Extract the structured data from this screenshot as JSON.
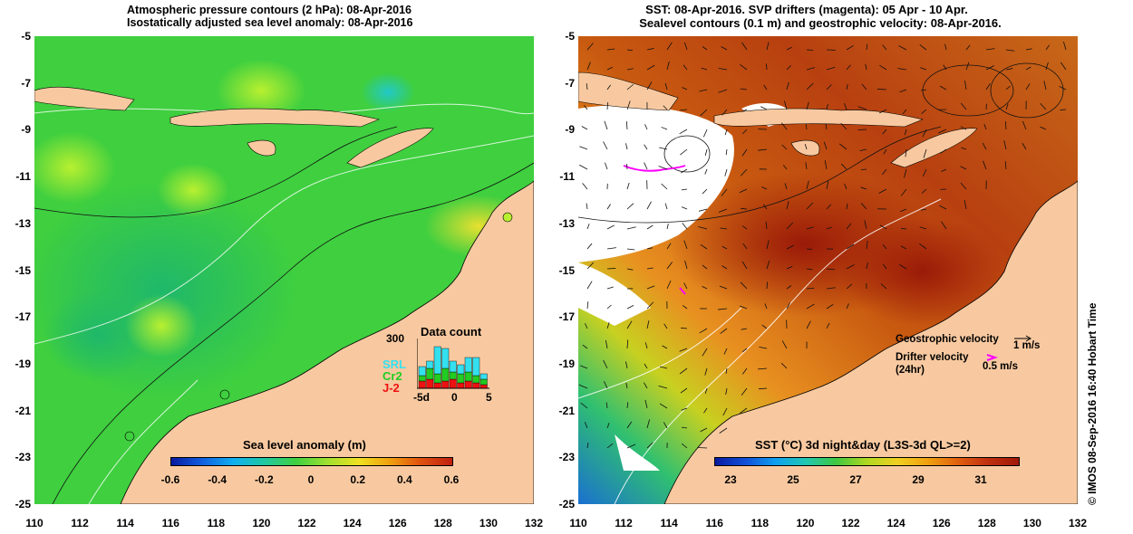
{
  "left_panel": {
    "title_line1": "Atmospheric pressure contours (2 hPa): 08-Apr-2016",
    "title_line2": "Isostatically adjusted sea level anomaly: 08-Apr-2016",
    "colorbar": {
      "title": "Sea level anomaly (m)",
      "ticks": [
        "-0.6",
        "-0.4",
        "-0.2",
        "0",
        "0.2",
        "0.4",
        "0.6"
      ]
    },
    "data_count": {
      "title": "Data count",
      "max_label": "300",
      "satellites": [
        "SRL",
        "Cr2",
        "J-2"
      ],
      "satellite_colors": [
        "#33e0f0",
        "#22cc22",
        "#ee1111"
      ],
      "x_ticks": [
        "-5d",
        "0",
        "5"
      ]
    }
  },
  "right_panel": {
    "title_line1": "SST: 08-Apr-2016. SVP drifters (magenta): 05 Apr - 10 Apr.",
    "title_line2": "Sealevel contours (0.1 m) and geostrophic velocity: 08-Apr-2016.",
    "colorbar": {
      "title": "SST (°C) 3d night&day (L3S-3d QL>=2)",
      "ticks": [
        "23",
        "25",
        "27",
        "29",
        "31"
      ]
    },
    "legend": {
      "geostrophic_label": "Geostrophic velocity",
      "geostrophic_scale": "1 m/s",
      "drifter_label_line1": "Drifter velocity",
      "drifter_label_line2": "(24hr)",
      "drifter_scale": "0.5 m/s"
    }
  },
  "axes": {
    "y_ticks": [
      "-5",
      "-7",
      "-9",
      "-11",
      "-13",
      "-15",
      "-17",
      "-19",
      "-21",
      "-23",
      "-25"
    ],
    "x_ticks": [
      "110",
      "112",
      "114",
      "116",
      "118",
      "120",
      "122",
      "124",
      "126",
      "128",
      "130",
      "132"
    ]
  },
  "credit": "© IMOS 08-Sep-2016 16:40 Hobart Time",
  "colors": {
    "land": "#f8c9a0",
    "sla_ocean": "#3fcf3f",
    "sst_ocean": "#c75a10",
    "drifter": "#ff00ff"
  }
}
